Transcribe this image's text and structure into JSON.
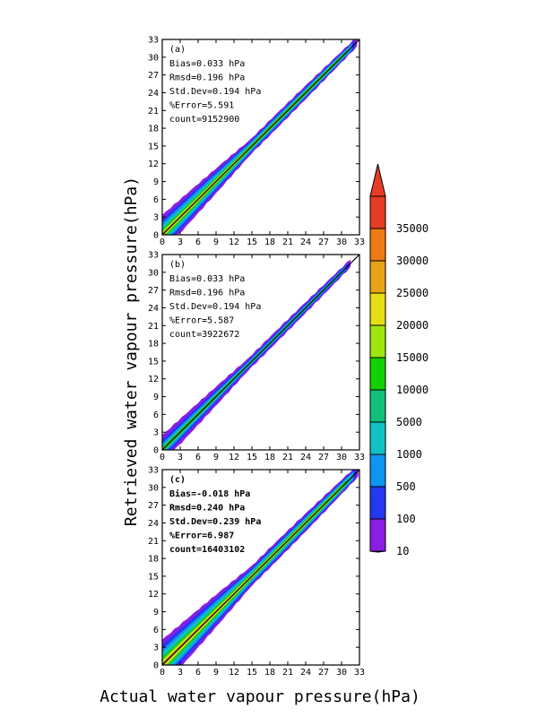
{
  "figure": {
    "xlabel": "Actual water vapour pressure(hPa)",
    "ylabel": "Retrieved water vapour pressure(hPa)"
  },
  "colors": {
    "scale": [
      "#8a1de6",
      "#2438f0",
      "#0f94f0",
      "#12c2c2",
      "#12bf7a",
      "#13d100",
      "#9ee60e",
      "#e6de14",
      "#e6a415",
      "#ef7a12",
      "#e63c26"
    ],
    "line": "#000000",
    "frame": "#000000"
  },
  "colorbar": {
    "labels": [
      "10",
      "100",
      "500",
      "1000",
      "5000",
      "10000",
      "15000",
      "20000",
      "25000",
      "30000",
      "35000"
    ]
  },
  "chart_data": [
    {
      "type": "heatmap",
      "panel": "(a)",
      "xlim": [
        0,
        33
      ],
      "ylim": [
        0,
        33
      ],
      "ticks": [
        "0",
        "3",
        "6",
        "9",
        "12",
        "15",
        "18",
        "21",
        "24",
        "27",
        "30",
        "33"
      ],
      "stats": [
        "Bias=0.033 hPa",
        "Rmsd=0.196 hPa",
        "Std.Dev=0.194 hPa",
        "%Error=5.591",
        "count=9152900"
      ],
      "spread_low_end": 2.5,
      "spread_mid": 1.3,
      "x_max": 32.6,
      "band_fracs": [
        1.0,
        0.78,
        0.6,
        0.45,
        0.33,
        0.24,
        0.17,
        0.11,
        0.07,
        0.04,
        0.02
      ]
    },
    {
      "type": "heatmap",
      "panel": "(b)",
      "xlim": [
        0,
        33
      ],
      "ylim": [
        0,
        33
      ],
      "ticks": [
        "0",
        "3",
        "6",
        "9",
        "12",
        "15",
        "18",
        "21",
        "24",
        "27",
        "30",
        "33"
      ],
      "stats": [
        "Bias=0.033 hPa",
        "Rmsd=0.196 hPa",
        "Std.Dev=0.194 hPa",
        "%Error=5.587",
        "count=3922672"
      ],
      "spread_low_end": 1.8,
      "spread_mid": 1.0,
      "x_max": 31.5,
      "band_fracs": [
        1.0,
        0.68,
        0.45,
        0.3,
        0.2,
        0.13,
        0.08,
        0.05,
        0.03,
        0.02,
        0.01
      ]
    },
    {
      "type": "heatmap",
      "panel": "(c)",
      "xlim": [
        0,
        33
      ],
      "ylim": [
        0,
        33
      ],
      "ticks": [
        "0",
        "3",
        "6",
        "9",
        "12",
        "15",
        "18",
        "21",
        "24",
        "27",
        "30",
        "33"
      ],
      "stats": [
        "Bias=-0.018 hPa",
        "Rmsd=0.240 hPa",
        "Std.Dev=0.239 hPa",
        "%Error=6.987",
        "count=16403102"
      ],
      "spread_low_end": 3.2,
      "spread_mid": 1.8,
      "x_max": 32.8,
      "band_fracs": [
        1.0,
        0.8,
        0.62,
        0.48,
        0.36,
        0.27,
        0.19,
        0.13,
        0.08,
        0.05,
        0.025
      ]
    }
  ]
}
